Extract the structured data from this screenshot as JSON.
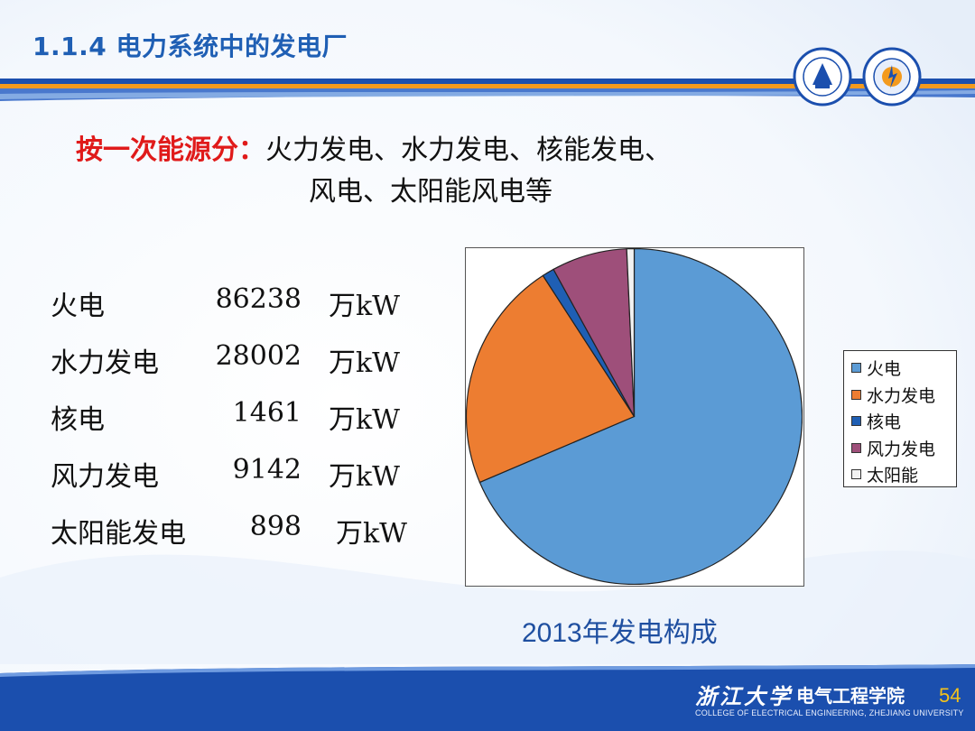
{
  "slide": {
    "title": "1.1.4 电力系统中的发电厂",
    "subtitle_lead": "按一次能源分：",
    "subtitle_line1": "火力发电、水力发电、核能发电、",
    "subtitle_line2": "风电、太阳能风电等",
    "page_number": "54"
  },
  "energy_table": {
    "rows": [
      {
        "name": "火电",
        "value": "86238",
        "unit": "万kW"
      },
      {
        "name": "水力发电",
        "value": "28002",
        "unit": "万kW"
      },
      {
        "name": "核电",
        "value": "1461",
        "unit": "万kW"
      },
      {
        "name": "风力发电",
        "value": "9142",
        "unit": "万kW"
      },
      {
        "name": "太阳能发电",
        "value": "898",
        "unit": "万kW"
      }
    ]
  },
  "chart_data": {
    "type": "pie",
    "title": "2013年发电构成",
    "categories": [
      "火电",
      "水力发电",
      "核电",
      "风力发电",
      "太阳能"
    ],
    "values": [
      86238,
      28002,
      1461,
      9142,
      898
    ],
    "unit": "万kW",
    "colors": [
      "#5b9bd5",
      "#ed7d31",
      "#1f5fb4",
      "#9e4f7a",
      "#f2f2f2"
    ],
    "legend": "right",
    "start_angle_deg": 0,
    "direction": "clockwise"
  },
  "footer": {
    "school": "浙江大学",
    "college": "电气工程学院",
    "college_en": "COLLEGE OF ELECTRICAL ENGINEERING, ZHEJIANG UNIVERSITY"
  },
  "colors": {
    "title_blue": "#1f5fb4",
    "accent_red": "#e01a1a",
    "footer_blue": "#1b4fae",
    "stripe_orange": "#f39a1e",
    "page_number_yellow": "#f4c21a"
  },
  "icons": [
    "zhejiang-university-seal-icon",
    "college-emblem-icon"
  ]
}
